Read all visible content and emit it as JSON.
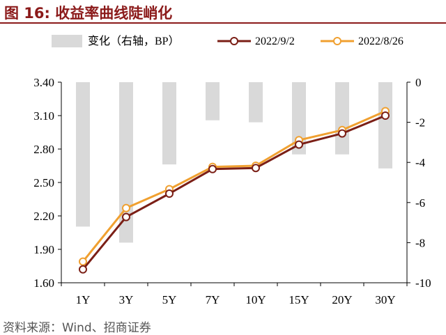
{
  "header": {
    "title": "图 16:  收益率曲线陡峭化"
  },
  "footer": {
    "source": "资料来源：Wind、招商证券"
  },
  "colors": {
    "bar": "#d9d9d9",
    "series_current": "#7b1f16",
    "series_prior": "#f0a030",
    "title": "#8b1a1a",
    "axis": "#000000"
  },
  "chart_data": {
    "type": "bar+line",
    "categories": [
      "1Y",
      "3Y",
      "5Y",
      "7Y",
      "10Y",
      "15Y",
      "20Y",
      "30Y"
    ],
    "bars": {
      "name": "变化（右轴，BP）",
      "axis": "right",
      "values": [
        -7.2,
        -8.0,
        -4.1,
        -1.9,
        -2.0,
        -3.6,
        -3.6,
        -4.3
      ]
    },
    "series": [
      {
        "name": "2022/9/2",
        "axis": "left",
        "color": "#7b1f16",
        "values": [
          1.72,
          2.19,
          2.4,
          2.62,
          2.63,
          2.84,
          2.94,
          3.1
        ]
      },
      {
        "name": "2022/8/26",
        "axis": "left",
        "color": "#f0a030",
        "values": [
          1.79,
          2.27,
          2.44,
          2.64,
          2.65,
          2.88,
          2.97,
          3.14
        ]
      }
    ],
    "left_axis": {
      "min": 1.6,
      "max": 3.4,
      "ticks": [
        "1.60",
        "1.90",
        "2.20",
        "2.50",
        "2.80",
        "3.10",
        "3.40"
      ]
    },
    "right_axis": {
      "min": -10,
      "max": 0,
      "ticks": [
        "0",
        "-2",
        "-4",
        "-6",
        "-8",
        "-10"
      ]
    },
    "legend_position": "top",
    "grid": false
  }
}
